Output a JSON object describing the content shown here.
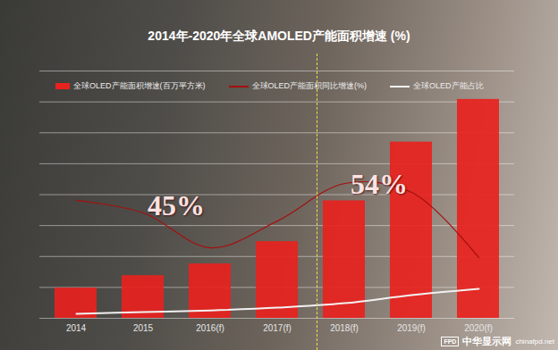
{
  "chart_data": {
    "type": "bar",
    "title": "2014年-2020年全球AMOLED产能面积增速 (%)",
    "categories": [
      "2014",
      "2015",
      "2016(f)",
      "2017(f)",
      "2018(f)",
      "2019(f)",
      "2020(f)"
    ],
    "series": [
      {
        "name": "全球OLED产能面积增速(百万平方米)",
        "type": "bar",
        "color": "#e8221e",
        "values": [
          4.9,
          6.9,
          8.8,
          12.4,
          19,
          28.5,
          35.4
        ]
      },
      {
        "name": "全球OLED产能面积同比增速(%)",
        "type": "line",
        "axis": "y2",
        "color": "#a3100e",
        "values": [
          47.7,
          42.6,
          28.5,
          39.4,
          54.5,
          50.9,
          24.5
        ]
      },
      {
        "name": "全球OLED产能占比",
        "type": "line",
        "axis": "y2",
        "color": "#f2f2f2",
        "values": [
          1.8,
          2.5,
          3.2,
          4.3,
          6.1,
          9.4,
          11.9
        ]
      }
    ],
    "ylim": [
      0,
      40
    ],
    "yticks": [
      0,
      5,
      10,
      15,
      20,
      25,
      30,
      35,
      40
    ],
    "y2lim": [
      0,
      100
    ],
    "grid": true,
    "legend": "top",
    "tick_labels": "x",
    "annotations": [
      "45%",
      "54%"
    ],
    "watermark": {
      "logo": "FPD",
      "text": "中华显示网",
      "url": "chinafpd.net"
    }
  }
}
